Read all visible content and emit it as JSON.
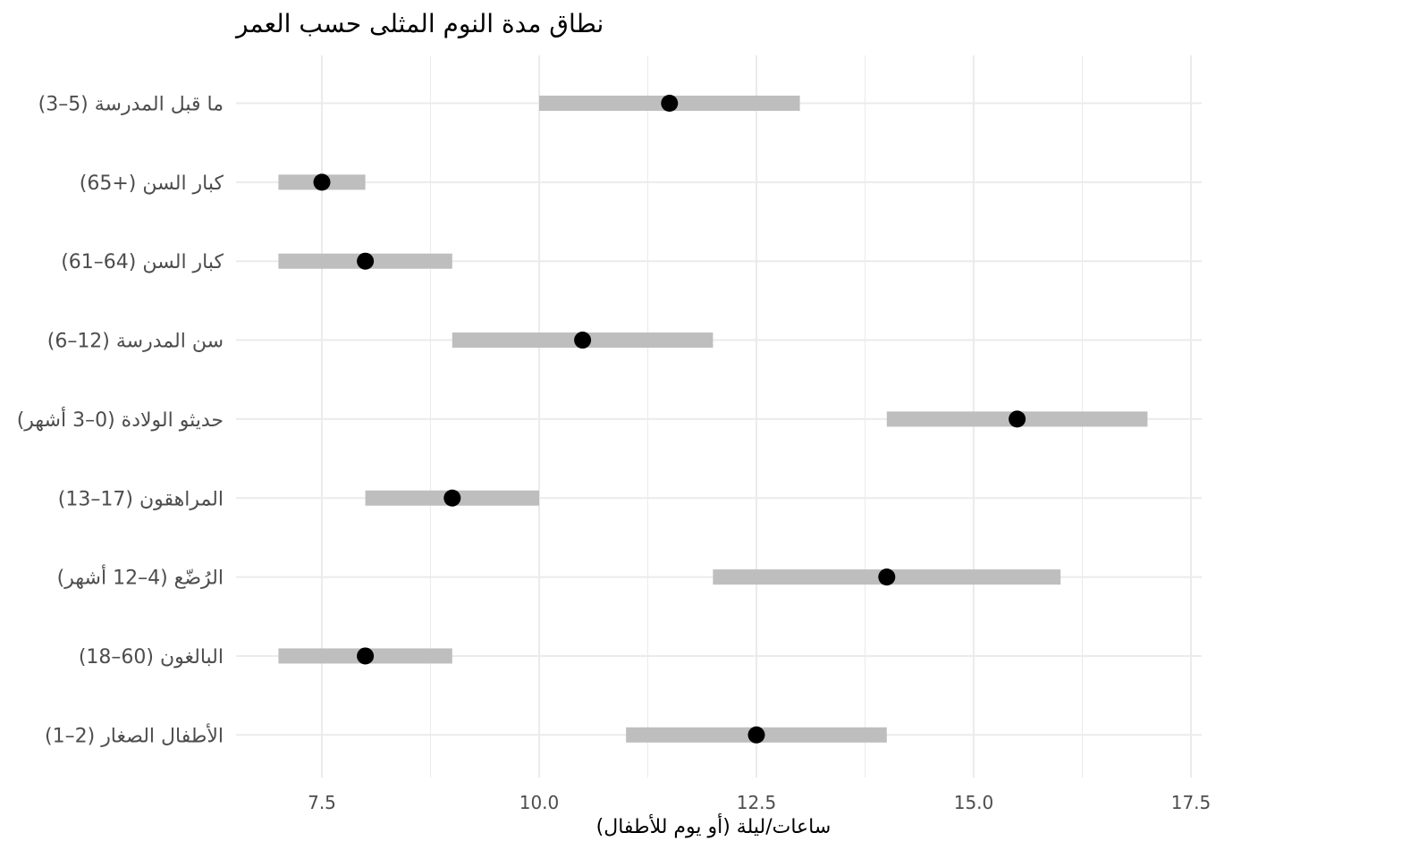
{
  "chart_data": {
    "type": "range-dot",
    "title": "نطاق مدة النوم المثلى حسب العمر",
    "xlabel": "ساعات/ليلة (أو يوم للأطفال)",
    "ylabel": "",
    "xlim": [
      6.5,
      17.5
    ],
    "xticks": [
      7.5,
      10.0,
      12.5,
      15.0,
      17.5
    ],
    "x_tick_labels": [
      "7.5",
      "10.0",
      "12.5",
      "15.0",
      "17.5"
    ],
    "grid": true,
    "categories": [
      "(3–5) ما قبل المدرسة",
      "(65+) كبار السن",
      "(61–64) كبار السن",
      "(6–12) سن المدرسة",
      "حديثو الولادة (0–3 أشهر)",
      "(13–17) المراهقون",
      "الرُضّع (4–12 أشهر)",
      "(18–60) البالغون",
      "(1–2) الأطفال الصغار"
    ],
    "ranges": [
      {
        "min": 10,
        "max": 13,
        "mid": 11.5
      },
      {
        "min": 7,
        "max": 8,
        "mid": 7.5
      },
      {
        "min": 7,
        "max": 9,
        "mid": 8
      },
      {
        "min": 9,
        "max": 12,
        "mid": 10.5
      },
      {
        "min": 14,
        "max": 17,
        "mid": 15.5
      },
      {
        "min": 8,
        "max": 10,
        "mid": 9
      },
      {
        "min": 12,
        "max": 16,
        "mid": 14
      },
      {
        "min": 7,
        "max": 9,
        "mid": 8
      },
      {
        "min": 11,
        "max": 14,
        "mid": 12.5
      }
    ],
    "colors": {
      "range_bar": "#bebebe",
      "point": "#000000",
      "grid": "#ebebeb",
      "tick_text": "#4d4d4d"
    }
  }
}
